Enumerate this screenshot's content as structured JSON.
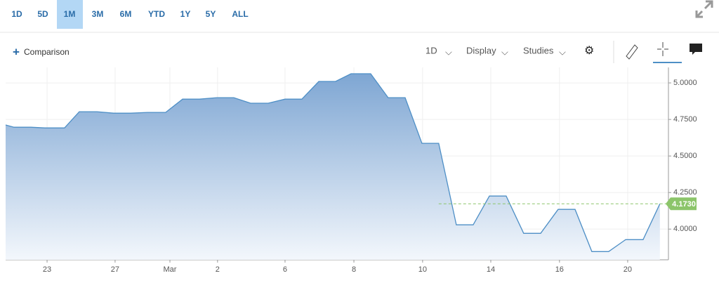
{
  "toolbar": {
    "ranges": [
      "1D",
      "5D",
      "1M",
      "3M",
      "6M",
      "YTD",
      "1Y",
      "5Y",
      "ALL"
    ],
    "selected": 2,
    "comparison": "Comparison",
    "interval": "1D",
    "display": "Display",
    "studies": "Studies"
  },
  "chart_data": {
    "type": "area",
    "x": [
      0.33,
      0.82,
      1.8,
      2.62,
      3.77,
      4.63,
      5.66,
      6.64,
      7.62,
      8.61,
      9.67,
      10.66,
      11.64,
      12.66,
      13.65,
      14.63,
      15.66,
      16.64,
      17.62,
      18.61,
      19.59,
      20.49,
      21.64,
      22.66,
      23.65,
      24.63,
      25.61,
      26.64,
      27.62,
      28.57,
      29.55,
      30.57,
      31.56,
      32.58,
      33.57,
      34.55,
      35.53,
      36.52,
      37.54,
      38.52
    ],
    "series": [
      {
        "color": "#4e8fc6",
        "values": [
          4.712,
          4.697,
          4.697,
          4.692,
          4.692,
          4.803,
          4.803,
          4.793,
          4.793,
          4.798,
          4.798,
          4.889,
          4.889,
          4.899,
          4.899,
          4.861,
          4.861,
          4.889,
          4.889,
          5.01,
          5.01,
          5.063,
          5.063,
          4.899,
          4.899,
          4.587,
          4.587,
          4.029,
          4.029,
          4.226,
          4.226,
          3.971,
          3.971,
          4.135,
          4.135,
          3.846,
          3.846,
          3.928,
          3.928,
          4.173
        ]
      }
    ],
    "last_price": {
      "value": 4.173,
      "label": "4.1730",
      "color": "#8cc56a"
    },
    "xlim": [
      0.33,
      39.02
    ],
    "xticks": [
      {
        "value": 2.75,
        "label": "23"
      },
      {
        "value": 6.72,
        "label": "27"
      },
      {
        "value": 9.92,
        "label": "Mar"
      },
      {
        "value": 12.7,
        "label": "2"
      },
      {
        "value": 16.64,
        "label": "6"
      },
      {
        "value": 20.66,
        "label": "8"
      },
      {
        "value": 24.67,
        "label": "10"
      },
      {
        "value": 28.65,
        "label": "14"
      },
      {
        "value": 32.66,
        "label": "16"
      },
      {
        "value": 36.64,
        "label": "20"
      }
    ],
    "ylim": [
      3.79,
      5.106
    ],
    "yticks": [
      {
        "value": 4,
        "label": "4.0000"
      },
      {
        "value": 4.25,
        "label": "4.2500"
      },
      {
        "value": 4.5,
        "label": "4.5000"
      },
      {
        "value": 4.75,
        "label": "4.7500"
      },
      {
        "value": 5,
        "label": "5.0000"
      }
    ],
    "grid": true
  }
}
